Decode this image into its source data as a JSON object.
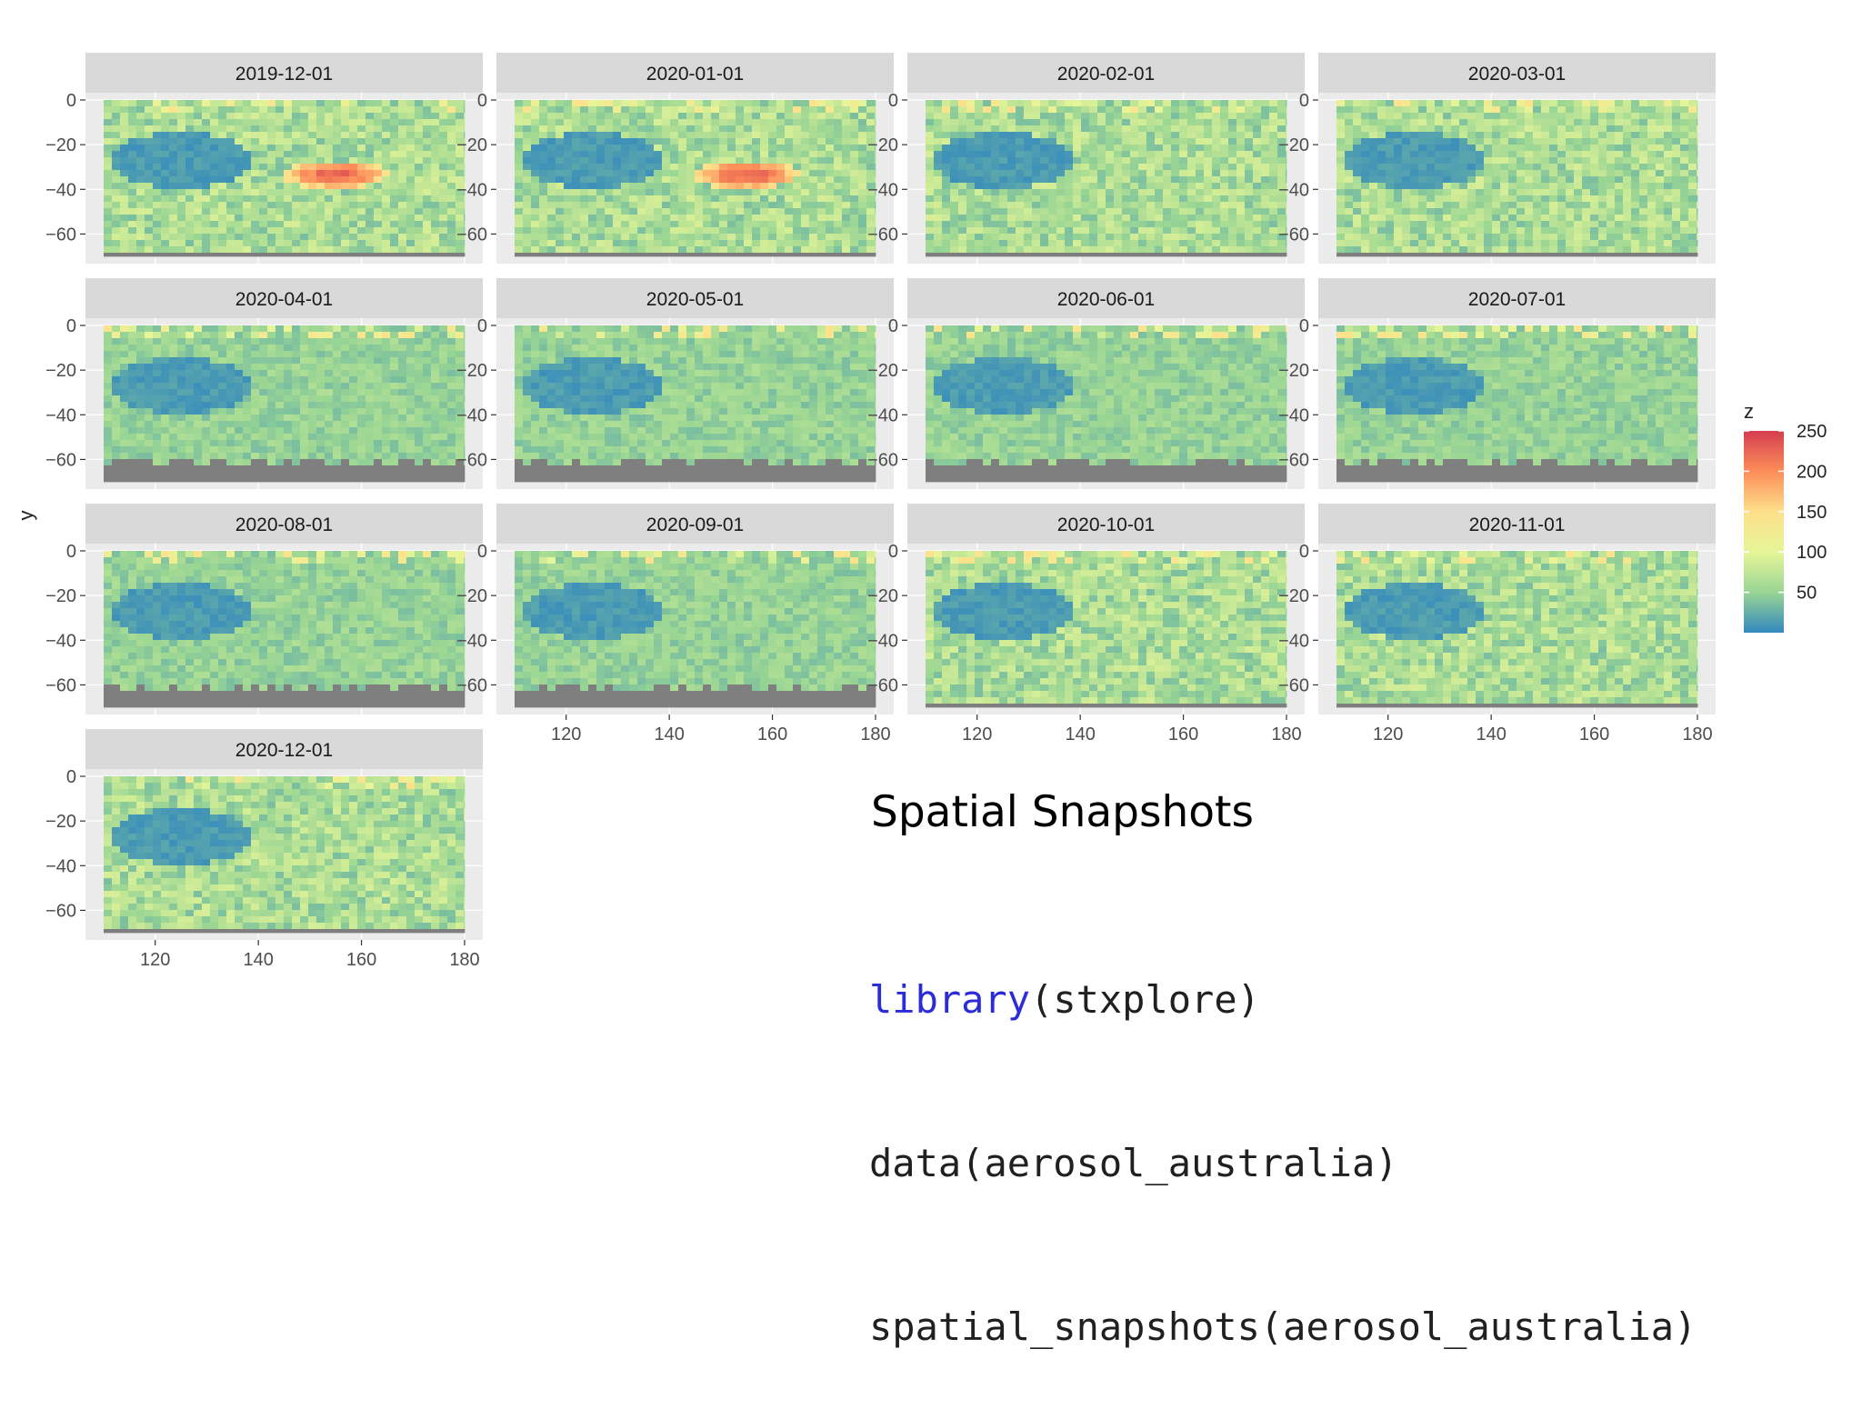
{
  "slide": {
    "title": "Spatial Snapshots",
    "code": [
      {
        "fn": "library",
        "arg": "stxplore",
        "fn_color": "#2b2bd9"
      },
      {
        "fn": "data",
        "arg": "aerosol_australia",
        "fn_color": "#202020"
      },
      {
        "fn": "spatial_snapshots",
        "arg": "aerosol_australia",
        "fn_color": "#202020"
      }
    ]
  },
  "chart_data": {
    "type": "heatmap",
    "facet_by": "date",
    "facets": [
      "2019-12-01",
      "2020-01-01",
      "2020-02-01",
      "2020-03-01",
      "2020-04-01",
      "2020-05-01",
      "2020-06-01",
      "2020-07-01",
      "2020-08-01",
      "2020-09-01",
      "2020-10-01",
      "2020-11-01",
      "2020-12-01"
    ],
    "facet_columns": 4,
    "xlabel": "",
    "ylabel": "y",
    "x_ticks": [
      120,
      140,
      160,
      180
    ],
    "y_ticks": [
      0,
      -20,
      -40,
      -60
    ],
    "xlim": [
      110,
      180
    ],
    "ylim": [
      -70,
      0
    ],
    "legend": {
      "title": "z",
      "ticks": [
        50,
        100,
        150,
        200,
        250
      ],
      "range": [
        0,
        250
      ],
      "position": "right",
      "colors": [
        "#3288bd",
        "#99d594",
        "#e6f598",
        "#fee08b",
        "#fc8d59",
        "#d53e4f"
      ]
    },
    "missing_color": "#7f7f7f",
    "grid": true
  }
}
